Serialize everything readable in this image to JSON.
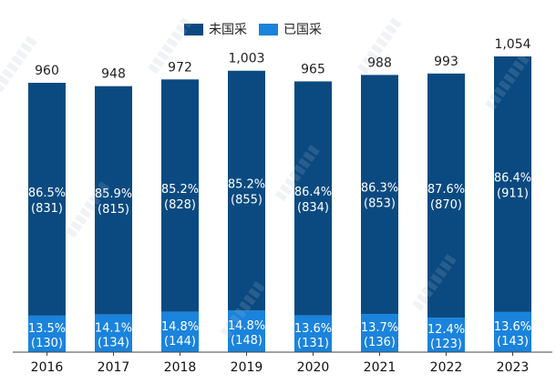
{
  "colors": {
    "not_procured": "#0b4a80",
    "procured": "#1a83dc",
    "axis": "#444444",
    "total_label": "#222222",
    "segment_label": "#ffffff"
  },
  "chart_data": {
    "type": "bar",
    "stacked": true,
    "categories": [
      "2016",
      "2017",
      "2018",
      "2019",
      "2020",
      "2021",
      "2022",
      "2023"
    ],
    "totals": [
      960,
      948,
      972,
      1003,
      965,
      988,
      993,
      1054
    ],
    "total_labels": [
      "960",
      "948",
      "972",
      "1,003",
      "965",
      "988",
      "993",
      "1,054"
    ],
    "series": [
      {
        "name": "已国采",
        "values": [
          130,
          134,
          144,
          148,
          131,
          136,
          123,
          143
        ],
        "percents": [
          "13.5%",
          "14.1%",
          "14.8%",
          "14.8%",
          "13.6%",
          "13.7%",
          "12.4%",
          "13.6%"
        ],
        "counts": [
          "(130)",
          "(134)",
          "(144)",
          "(148)",
          "(131)",
          "(136)",
          "(123)",
          "(143)"
        ]
      },
      {
        "name": "未国采",
        "values": [
          831,
          815,
          828,
          855,
          834,
          853,
          870,
          911
        ],
        "percents": [
          "86.5%",
          "85.9%",
          "85.2%",
          "85.2%",
          "86.4%",
          "86.3%",
          "87.6%",
          "86.4%"
        ],
        "counts": [
          "(831)",
          "(815)",
          "(828)",
          "(855)",
          "(834)",
          "(853)",
          "(870)",
          "(911)"
        ]
      }
    ],
    "legend": [
      "未国采",
      "已国采"
    ],
    "legend_position": "top",
    "ylim": [
      0,
      1054
    ],
    "grid": false
  }
}
